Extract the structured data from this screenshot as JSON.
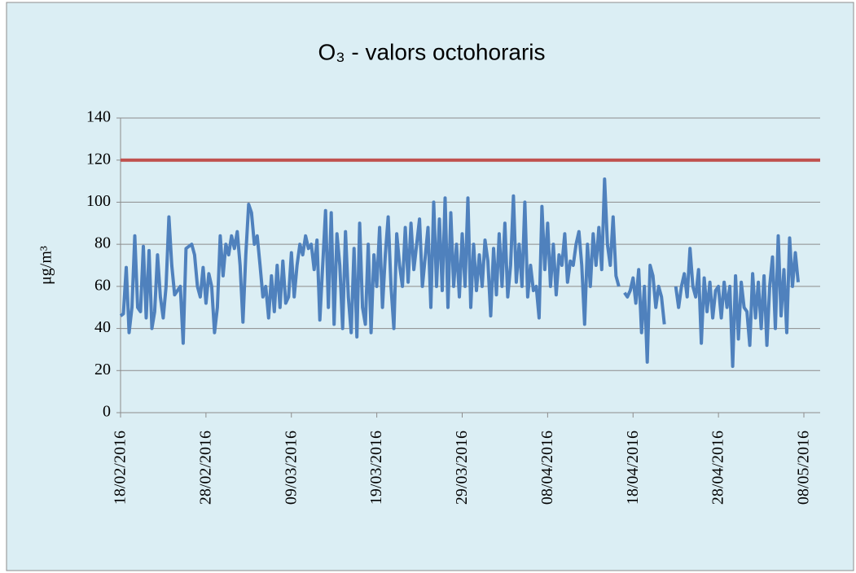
{
  "chart_data": {
    "type": "line",
    "title": "O₃ - valors octohoraris",
    "y_label": "μg/m³",
    "categories": [
      "18/02/2016",
      null,
      null,
      null,
      null,
      null,
      null,
      null,
      null,
      null,
      null,
      null,
      null,
      null,
      null,
      null,
      null,
      null,
      null,
      null,
      null,
      null,
      null,
      null,
      null,
      null,
      null,
      null,
      null,
      null,
      "28/02/2016",
      null,
      null,
      null,
      null,
      null,
      null,
      null,
      null,
      null,
      null,
      null,
      null,
      null,
      null,
      null,
      null,
      null,
      null,
      null,
      null,
      null,
      null,
      null,
      null,
      null,
      null,
      null,
      null,
      null,
      "09/03/2016",
      null,
      null,
      null,
      null,
      null,
      null,
      null,
      null,
      null,
      null,
      null,
      null,
      null,
      null,
      null,
      null,
      null,
      null,
      null,
      null,
      null,
      null,
      null,
      null,
      null,
      null,
      null,
      null,
      null,
      "19/03/2016",
      null,
      null,
      null,
      null,
      null,
      null,
      null,
      null,
      null,
      null,
      null,
      null,
      null,
      null,
      null,
      null,
      null,
      null,
      null,
      null,
      null,
      null,
      null,
      null,
      null,
      null,
      null,
      null,
      null,
      "29/03/2016",
      null,
      null,
      null,
      null,
      null,
      null,
      null,
      null,
      null,
      null,
      null,
      null,
      null,
      null,
      null,
      null,
      null,
      null,
      null,
      null,
      null,
      null,
      null,
      null,
      null,
      null,
      null,
      null,
      null,
      "08/04/2016",
      null,
      null,
      null,
      null,
      null,
      null,
      null,
      null,
      null,
      null,
      null,
      null,
      null,
      null,
      null,
      null,
      null,
      null,
      null,
      null,
      null,
      null,
      null,
      null,
      null,
      null,
      null,
      null,
      null,
      "18/04/2016",
      null,
      null,
      null,
      null,
      null,
      null,
      null,
      null,
      null,
      null,
      null,
      null,
      null,
      null,
      null,
      null,
      null,
      null,
      null,
      null,
      null,
      null,
      null,
      null,
      null,
      null,
      null,
      null,
      null,
      "28/04/2016",
      null,
      null,
      null,
      null,
      null,
      null,
      null,
      null,
      null,
      null,
      null,
      null,
      null,
      null,
      null,
      null,
      null,
      null,
      null,
      null,
      null,
      null,
      null,
      null,
      null,
      null,
      null,
      null,
      null,
      "08/05/2016"
    ],
    "series": [
      {
        "color": "#4f81bd",
        "values": [
          46,
          47,
          69,
          38,
          50,
          84,
          50,
          48,
          79,
          45,
          77,
          40,
          48,
          75,
          55,
          45,
          60,
          93,
          70,
          56,
          58,
          60,
          33,
          78,
          79,
          80,
          75,
          60,
          55,
          69,
          52,
          66,
          60,
          38,
          50,
          84,
          65,
          80,
          75,
          84,
          78,
          86,
          70,
          43,
          75,
          99,
          95,
          80,
          84,
          70,
          55,
          60,
          45,
          65,
          48,
          70,
          50,
          72,
          52,
          55,
          76,
          55,
          70,
          80,
          75,
          84,
          78,
          80,
          68,
          82,
          44,
          70,
          96,
          50,
          95,
          42,
          85,
          70,
          40,
          86,
          55,
          38,
          78,
          36,
          90,
          50,
          42,
          80,
          38,
          75,
          60,
          88,
          50,
          75,
          93,
          60,
          40,
          85,
          70,
          60,
          88,
          62,
          90,
          68,
          80,
          92,
          60,
          74,
          88,
          50,
          100,
          60,
          92,
          58,
          102,
          50,
          95,
          60,
          80,
          55,
          85,
          60,
          102,
          50,
          80,
          58,
          75,
          60,
          82,
          72,
          46,
          78,
          56,
          85,
          60,
          90,
          55,
          70,
          103,
          62,
          80,
          60,
          100,
          55,
          70,
          58,
          60,
          45,
          98,
          68,
          90,
          60,
          80,
          56,
          75,
          70,
          85,
          62,
          72,
          70,
          80,
          86,
          70,
          42,
          80,
          60,
          85,
          70,
          88,
          68,
          111,
          80,
          70,
          93,
          65,
          60,
          null,
          57,
          55,
          58,
          64,
          52,
          68,
          38,
          60,
          24,
          70,
          65,
          50,
          60,
          55,
          42,
          null,
          null,
          null,
          60,
          50,
          60,
          66,
          55,
          78,
          60,
          55,
          68,
          33,
          64,
          48,
          62,
          45,
          58,
          60,
          45,
          62,
          50,
          60,
          22,
          65,
          35,
          62,
          50,
          48,
          32,
          66,
          45,
          62,
          40,
          65,
          32,
          60,
          74,
          40,
          84,
          46,
          68,
          38,
          83,
          60,
          76,
          62,
          null,
          null
        ]
      }
    ],
    "threshold": 120,
    "threshold_color": "#c0504d",
    "ylim": [
      0,
      140
    ],
    "yticks": [
      0,
      20,
      40,
      60,
      80,
      100,
      120,
      140
    ],
    "grid": true
  }
}
